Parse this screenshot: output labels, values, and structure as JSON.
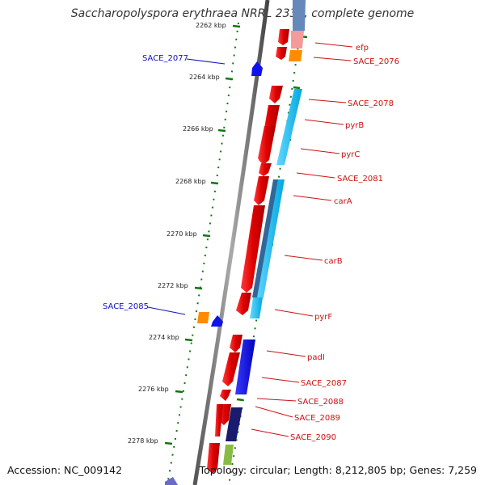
{
  "title": "Saccharopolyspora erythraea NRRL 2338, complete genome",
  "footer": {
    "accession": "Accession: NC_009142",
    "topology": "Topology: circular; Length: 8,212,805 bp; Genes: 7,259"
  },
  "colors": {
    "forward_gene": "#ee1111",
    "reverse_gene": "#1111ee",
    "backbone": "#888888",
    "ticks": "#117711",
    "blast_light": "#00b8ee",
    "blast_dark": "#336699",
    "label_red": "#cc1111",
    "label_blue": "#1111bb"
  },
  "scale": {
    "unit": "kbp",
    "ticks": [
      {
        "label": "2262 kbp",
        "value": 2262
      },
      {
        "label": "2264 kbp",
        "value": 2264
      },
      {
        "label": "2266 kbp",
        "value": 2266
      },
      {
        "label": "2268 kbp",
        "value": 2268
      },
      {
        "label": "2270 kbp",
        "value": 2270
      },
      {
        "label": "2272 kbp",
        "value": 2272
      },
      {
        "label": "2274 kbp",
        "value": 2274
      },
      {
        "label": "2276 kbp",
        "value": 2276
      },
      {
        "label": "2278 kbp",
        "value": 2278
      }
    ]
  },
  "gene_labels": {
    "right": [
      "efp",
      "SACE_2076",
      "SACE_2078",
      "pyrB",
      "pyrC",
      "SACE_2081",
      "carA",
      "carB",
      "pyrF",
      "padI",
      "SACE_2087",
      "SACE_2088",
      "SACE_2089",
      "SACE_2090"
    ],
    "left": [
      "SACE_2077",
      "SACE_2085"
    ]
  }
}
